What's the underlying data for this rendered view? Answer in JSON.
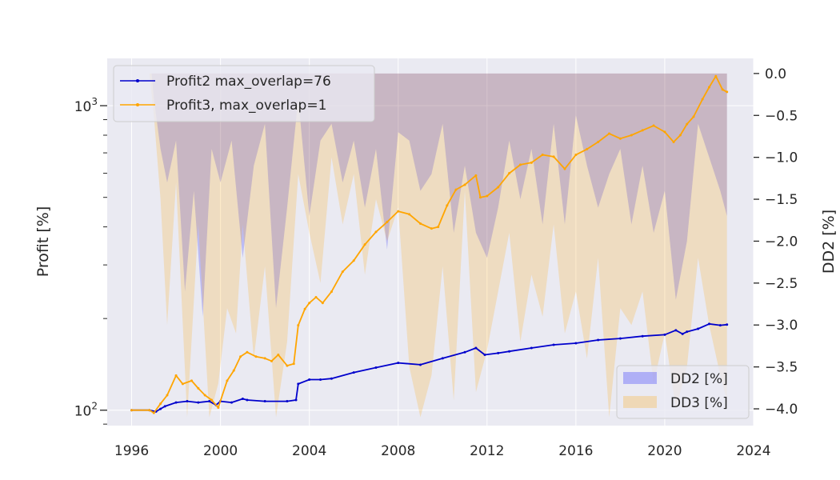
{
  "chart_data": {
    "type": "line",
    "title": "",
    "xlabel": "",
    "ylabel_left": "Profit [%]",
    "ylabel_right": "DD2 [%]",
    "xlim": [
      1994.9,
      2024.0
    ],
    "x_ticks": [
      1996,
      2000,
      2004,
      2008,
      2012,
      2016,
      2020,
      2024
    ],
    "x_tick_labels": [
      "1996",
      "2000",
      "2004",
      "2008",
      "2012",
      "2016",
      "2020",
      "2024"
    ],
    "y_left": {
      "scale": "log",
      "lim": [
        89,
        1430
      ],
      "major_ticks": [
        100,
        1000
      ],
      "major_tick_bases": [
        "10",
        "10"
      ],
      "major_tick_exponents": [
        "2",
        "3"
      ],
      "minor_ticks": [
        200,
        300,
        400,
        500,
        600,
        700,
        800,
        900
      ]
    },
    "y_right": {
      "scale": "linear",
      "lim": [
        -4.2,
        0.18
      ],
      "ticks": [
        0.0,
        -0.5,
        -1.0,
        -1.5,
        -2.0,
        -2.5,
        -3.0,
        -3.5,
        -4.0
      ],
      "tick_labels": [
        "0.0",
        "−0.5",
        "−1.0",
        "−1.5",
        "−2.0",
        "−2.5",
        "−3.0",
        "−3.5",
        "−4.0"
      ]
    },
    "grid": true,
    "line_legend_placement": "upper-left",
    "area_legend_placement": "lower-right",
    "line_series": [
      {
        "name": "Profit2 max_overlap=76",
        "color": "#0000cc",
        "x": [
          1996.0,
          1996.8,
          1997.1,
          1997.3,
          1997.5,
          1998.0,
          1998.5,
          1999.0,
          1999.5,
          1999.8,
          2000.0,
          2000.5,
          2001.0,
          2001.2,
          2002.0,
          2003.0,
          2003.4,
          2003.5,
          2004.0,
          2004.5,
          2005.0,
          2006.0,
          2007.0,
          2008.0,
          2009.0,
          2010.0,
          2011.0,
          2011.5,
          2011.9,
          2012.5,
          2013.0,
          2014.0,
          2015.0,
          2016.0,
          2017.0,
          2018.0,
          2019.0,
          2020.0,
          2020.5,
          2020.8,
          2021.0,
          2021.5,
          2022.0,
          2022.5,
          2022.8
        ],
        "y": [
          100,
          100,
          99,
          101,
          103,
          106,
          107,
          106,
          107,
          104,
          107,
          106,
          109,
          108,
          107,
          107,
          108,
          122,
          126,
          126,
          127,
          133,
          138,
          143,
          141,
          148,
          155,
          160,
          152,
          154,
          156,
          160,
          164,
          166,
          170,
          172,
          175,
          177,
          183,
          178,
          181,
          185,
          192,
          190,
          191
        ]
      },
      {
        "name": "Profit3, max_overlap=1",
        "color": "#ffa500",
        "x": [
          1996.0,
          1996.8,
          1997.0,
          1997.3,
          1997.6,
          1998.0,
          1998.3,
          1998.7,
          1999.0,
          1999.3,
          1999.6,
          1999.9,
          2000.3,
          2000.6,
          2000.9,
          2001.2,
          2001.6,
          2002.0,
          2002.3,
          2002.6,
          2003.0,
          2003.3,
          2003.5,
          2003.8,
          2004.0,
          2004.3,
          2004.6,
          2005.0,
          2005.5,
          2006.0,
          2006.5,
          2007.0,
          2007.5,
          2008.0,
          2008.5,
          2009.0,
          2009.5,
          2009.8,
          2010.2,
          2010.6,
          2011.0,
          2011.5,
          2011.7,
          2012.0,
          2012.5,
          2013.0,
          2013.5,
          2014.0,
          2014.5,
          2015.0,
          2015.5,
          2016.0,
          2016.5,
          2017.0,
          2017.5,
          2018.0,
          2018.5,
          2019.0,
          2019.5,
          2020.0,
          2020.4,
          2020.7,
          2021.0,
          2021.3,
          2021.7,
          2022.0,
          2022.3,
          2022.6,
          2022.8
        ],
        "y": [
          100,
          100,
          98,
          105,
          112,
          130,
          122,
          125,
          118,
          112,
          108,
          102,
          125,
          135,
          150,
          155,
          150,
          148,
          145,
          152,
          140,
          142,
          190,
          215,
          225,
          235,
          225,
          245,
          285,
          310,
          350,
          385,
          415,
          450,
          440,
          410,
          395,
          400,
          470,
          530,
          550,
          590,
          500,
          505,
          540,
          600,
          640,
          650,
          690,
          680,
          620,
          690,
          720,
          760,
          810,
          780,
          800,
          830,
          860,
          820,
          760,
          800,
          870,
          920,
          1050,
          1150,
          1250,
          1130,
          1110
        ]
      }
    ],
    "area_series": [
      {
        "name": "DD2 [%]",
        "color": "#0000ff",
        "opacity": 0.2,
        "x": [
          1996.0,
          1996.9,
          1997.0,
          1997.3,
          1997.6,
          1998.0,
          1998.4,
          1998.8,
          1999.2,
          1999.6,
          2000.0,
          2000.5,
          2001.0,
          2001.5,
          2002.0,
          2002.5,
          2003.0,
          2003.5,
          2004.0,
          2004.5,
          2005.0,
          2005.5,
          2006.0,
          2006.5,
          2007.0,
          2007.5,
          2008.0,
          2008.5,
          2009.0,
          2009.5,
          2010.0,
          2010.5,
          2011.0,
          2011.5,
          2012.0,
          2012.5,
          2013.0,
          2013.5,
          2014.0,
          2014.5,
          2015.0,
          2015.5,
          2016.0,
          2016.5,
          2017.0,
          2017.5,
          2018.0,
          2018.5,
          2019.0,
          2019.5,
          2020.0,
          2020.5,
          2021.0,
          2021.5,
          2022.0,
          2022.5,
          2022.8
        ],
        "y": [
          0,
          0,
          -0.3,
          -0.9,
          -1.3,
          -0.8,
          -2.6,
          -1.4,
          -2.9,
          -0.9,
          -1.3,
          -0.8,
          -2.2,
          -1.1,
          -0.6,
          -2.8,
          -1.6,
          -0.3,
          -1.7,
          -0.8,
          -0.6,
          -1.3,
          -0.8,
          -1.6,
          -0.9,
          -2.1,
          -0.7,
          -0.8,
          -1.4,
          -1.2,
          -0.6,
          -1.9,
          -1.1,
          -1.9,
          -2.2,
          -1.6,
          -0.8,
          -1.5,
          -0.9,
          -1.8,
          -0.6,
          -1.8,
          -0.5,
          -1.1,
          -1.6,
          -1.2,
          -0.9,
          -1.8,
          -1.1,
          -1.9,
          -1.4,
          -2.7,
          -2.0,
          -0.6,
          -1.0,
          -1.4,
          -1.7
        ]
      },
      {
        "name": "DD3 [%]",
        "color": "#ffa500",
        "opacity": 0.2,
        "x": [
          1996.0,
          1996.8,
          1997.0,
          1997.3,
          1997.6,
          1998.0,
          1998.5,
          1999.0,
          1999.5,
          1999.9,
          2000.3,
          2000.7,
          2001.0,
          2001.5,
          2002.0,
          2002.5,
          2003.0,
          2003.5,
          2004.0,
          2004.5,
          2005.0,
          2005.5,
          2006.0,
          2006.5,
          2007.0,
          2007.5,
          2008.0,
          2008.5,
          2009.0,
          2009.5,
          2010.0,
          2010.5,
          2011.0,
          2011.5,
          2012.0,
          2012.5,
          2013.0,
          2013.5,
          2014.0,
          2014.5,
          2015.0,
          2015.5,
          2016.0,
          2016.5,
          2017.0,
          2017.5,
          2018.0,
          2018.5,
          2019.0,
          2019.5,
          2020.0,
          2020.5,
          2021.0,
          2021.5,
          2022.0,
          2022.5,
          2022.8
        ],
        "y": [
          0,
          0,
          -0.5,
          -1.5,
          -3.0,
          -1.3,
          -4.1,
          -1.8,
          -4.1,
          -3.7,
          -2.8,
          -3.1,
          -1.8,
          -3.4,
          -2.3,
          -4.1,
          -3.2,
          -1.2,
          -1.9,
          -2.5,
          -1.0,
          -1.8,
          -1.2,
          -2.4,
          -1.5,
          -2.0,
          -1.6,
          -3.5,
          -4.1,
          -3.6,
          -2.3,
          -3.9,
          -1.4,
          -3.8,
          -3.3,
          -2.6,
          -1.9,
          -3.2,
          -2.4,
          -2.9,
          -1.8,
          -3.1,
          -2.6,
          -3.4,
          -2.2,
          -4.1,
          -2.8,
          -3.0,
          -2.6,
          -3.7,
          -3.1,
          -4.0,
          -3.5,
          -2.2,
          -3.0,
          -3.6,
          -3.9
        ]
      }
    ]
  }
}
